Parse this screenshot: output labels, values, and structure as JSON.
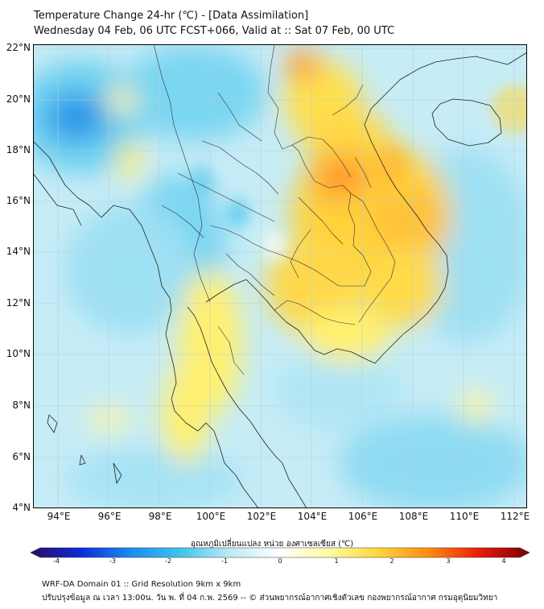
{
  "title": {
    "line1": "Temperature Change 24-hr (℃) - [Data Assimilation]",
    "line2": "Wednesday 04 Feb, 06 UTC FCST+066, Valid at :: Sat 07 Feb, 00 UTC"
  },
  "map": {
    "lon_range": [
      93,
      112.5
    ],
    "lat_range": [
      4,
      22.2
    ],
    "x_ticks": [
      "94°E",
      "96°E",
      "98°E",
      "100°E",
      "102°E",
      "104°E",
      "106°E",
      "108°E",
      "110°E",
      "112°E"
    ],
    "y_ticks": [
      "22°N",
      "20°N",
      "18°N",
      "16°N",
      "14°N",
      "12°N",
      "10°N",
      "8°N",
      "6°N",
      "4°N"
    ],
    "gridlines": true
  },
  "colorbar": {
    "label": "อุณหภูมิเปลี่ยนแปลง หน่วย องศาเซลเซียส (℃)",
    "ticks": [
      "-4",
      "-3",
      "-2",
      "-1",
      "0",
      "1",
      "2",
      "3",
      "4"
    ],
    "range": [
      -4,
      4
    ],
    "colors": [
      "#2a0a66",
      "#0c2cd8",
      "#1a8cf0",
      "#3cc4ec",
      "#bfe9f6",
      "#ffffff",
      "#fffaa0",
      "#ffd43a",
      "#ff8a10",
      "#e81a08",
      "#7a0000"
    ]
  },
  "footer": {
    "line1": "WRF-DA Domain 01 :: Grid Resolution 9km x 9km",
    "line2": "ปรับปรุงข้อมูล ณ เวลา 13:00น. วัน พ. ที่ 04 ก.พ. 2569 -- © ส่วนพยากรณ์อากาศเชิงตัวเลข กองพยากรณ์อากาศ กรมอุตุนิยมวิทยา"
  }
}
